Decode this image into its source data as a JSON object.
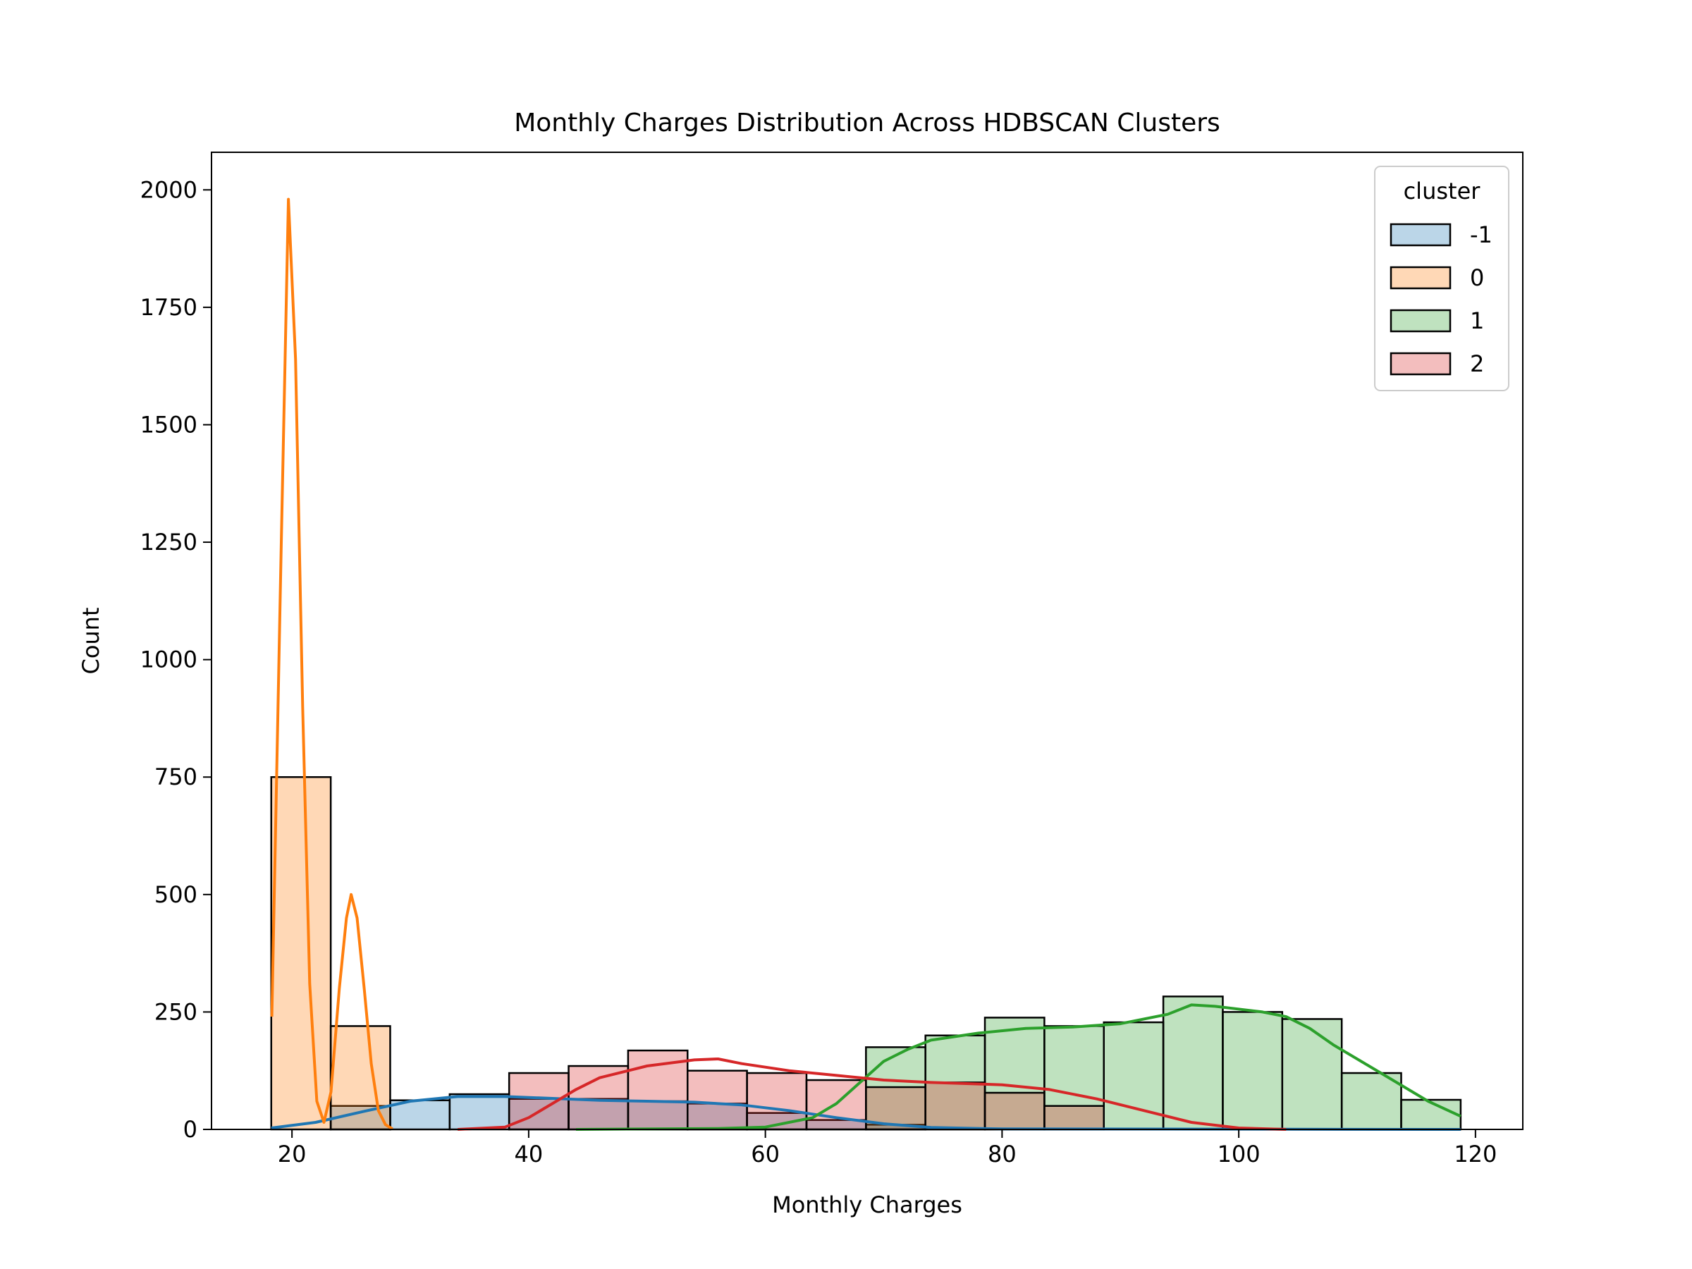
{
  "chart_data": {
    "type": "bar",
    "title": "Monthly Charges Distribution Across HDBSCAN Clusters",
    "xlabel": "Monthly Charges",
    "ylabel": "Count",
    "xlim": [
      13.2,
      124.0
    ],
    "ylim": [
      0,
      2080
    ],
    "xticks": [
      20,
      40,
      60,
      80,
      100,
      120
    ],
    "yticks": [
      0,
      250,
      500,
      750,
      1000,
      1250,
      1500,
      1750,
      2000
    ],
    "bin_edges": [
      18.25,
      23.275,
      28.3,
      33.325,
      38.35,
      43.375,
      48.4,
      53.425,
      58.45,
      63.475,
      68.5,
      73.525,
      78.55,
      83.575,
      88.6,
      93.625,
      98.65,
      103.675,
      108.7,
      113.725,
      118.75
    ],
    "grid": false,
    "legend": {
      "title": "cluster",
      "placement": "top-right"
    },
    "series": [
      {
        "name": "-1",
        "color": "#1f77b4",
        "counts": [
          0,
          50,
          62,
          75,
          65,
          65,
          60,
          55,
          35,
          20,
          10,
          0,
          0,
          0,
          0,
          0,
          0,
          0,
          0,
          0
        ],
        "kde": [
          [
            18.25,
            3
          ],
          [
            22,
            15
          ],
          [
            26,
            38
          ],
          [
            30,
            60
          ],
          [
            34,
            70
          ],
          [
            38,
            70
          ],
          [
            42,
            66
          ],
          [
            46,
            62
          ],
          [
            50,
            60
          ],
          [
            54,
            58
          ],
          [
            58,
            52
          ],
          [
            62,
            40
          ],
          [
            66,
            25
          ],
          [
            70,
            12
          ],
          [
            74,
            4
          ],
          [
            80,
            1
          ],
          [
            118.75,
            0
          ]
        ]
      },
      {
        "name": "0",
        "color": "#ff7f0e",
        "counts": [
          750,
          220,
          0,
          0,
          0,
          0,
          0,
          0,
          0,
          0,
          0,
          0,
          0,
          0,
          0,
          0,
          0,
          0,
          0,
          0
        ],
        "kde": [
          [
            18.3,
            240
          ],
          [
            19.1,
            1250
          ],
          [
            19.7,
            1980
          ],
          [
            20.3,
            1640
          ],
          [
            20.9,
            900
          ],
          [
            21.5,
            310
          ],
          [
            22.1,
            60
          ],
          [
            22.7,
            15
          ],
          [
            23.3,
            80
          ],
          [
            24.0,
            300
          ],
          [
            24.6,
            450
          ],
          [
            25.0,
            500
          ],
          [
            25.5,
            450
          ],
          [
            26.1,
            300
          ],
          [
            26.7,
            140
          ],
          [
            27.3,
            40
          ],
          [
            27.9,
            10
          ],
          [
            28.5,
            1
          ]
        ]
      },
      {
        "name": "1",
        "color": "#2ca02c",
        "counts": [
          0,
          0,
          0,
          0,
          0,
          0,
          0,
          0,
          0,
          0,
          175,
          200,
          238,
          220,
          228,
          283,
          250,
          235,
          120,
          63
        ],
        "kde": [
          [
            44,
            0
          ],
          [
            56,
            2
          ],
          [
            60,
            5
          ],
          [
            64,
            25
          ],
          [
            66,
            55
          ],
          [
            68,
            100
          ],
          [
            70,
            145
          ],
          [
            72,
            170
          ],
          [
            74,
            190
          ],
          [
            78,
            205
          ],
          [
            82,
            215
          ],
          [
            86,
            218
          ],
          [
            90,
            225
          ],
          [
            94,
            245
          ],
          [
            96,
            265
          ],
          [
            98,
            262
          ],
          [
            102,
            250
          ],
          [
            104,
            240
          ],
          [
            106,
            215
          ],
          [
            108,
            180
          ],
          [
            112,
            120
          ],
          [
            116,
            60
          ],
          [
            118.75,
            28
          ]
        ]
      },
      {
        "name": "2",
        "color": "#d62728",
        "counts": [
          0,
          0,
          0,
          0,
          120,
          135,
          168,
          125,
          120,
          105,
          90,
          100,
          78,
          50,
          0,
          0,
          0,
          0,
          0,
          0
        ],
        "kde": [
          [
            34,
            0
          ],
          [
            38,
            5
          ],
          [
            40,
            25
          ],
          [
            42,
            55
          ],
          [
            44,
            85
          ],
          [
            46,
            110
          ],
          [
            50,
            135
          ],
          [
            54,
            148
          ],
          [
            56,
            150
          ],
          [
            58,
            140
          ],
          [
            62,
            125
          ],
          [
            66,
            115
          ],
          [
            70,
            105
          ],
          [
            74,
            100
          ],
          [
            80,
            95
          ],
          [
            84,
            85
          ],
          [
            88,
            65
          ],
          [
            92,
            40
          ],
          [
            96,
            15
          ],
          [
            100,
            3
          ],
          [
            104,
            0
          ]
        ]
      }
    ]
  }
}
